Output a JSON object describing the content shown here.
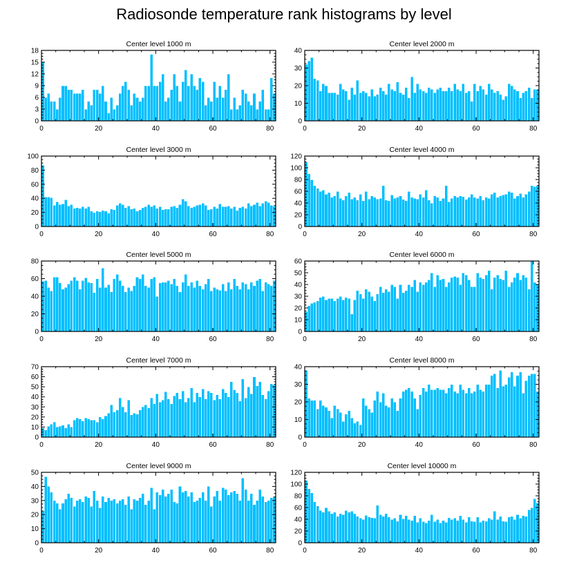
{
  "chart_data": {
    "type": "bar",
    "title": "Radiosonde temperature rank histograms by level",
    "bar_color": "#00bfff",
    "bar_edge_color": "#ffffff",
    "xlim": [
      0,
      82
    ],
    "x_ticks": [
      0,
      20,
      40,
      60,
      80
    ],
    "panels": [
      {
        "title": "Center level 1000 m",
        "ylim": [
          0,
          18
        ],
        "y_ticks": [
          0,
          3,
          6,
          9,
          12,
          15,
          18
        ],
        "values": [
          15,
          6,
          7,
          5,
          5,
          3,
          6,
          9,
          9,
          8,
          8,
          7,
          7,
          7,
          8,
          3,
          5,
          4,
          8,
          8,
          7,
          9,
          5,
          2,
          6,
          3,
          4,
          7,
          9,
          10,
          8,
          4,
          7,
          6,
          5,
          6,
          9,
          9,
          17,
          9,
          9,
          10,
          12,
          5,
          6,
          8,
          12,
          9,
          5,
          10,
          13,
          9,
          12,
          9,
          8,
          11,
          10,
          4,
          6,
          5,
          10,
          6,
          9,
          6,
          8,
          12,
          3,
          6,
          3,
          4,
          8,
          7,
          5,
          4,
          7,
          3,
          5,
          8,
          3,
          3,
          11,
          7
        ]
      },
      {
        "title": "Center level 2000 m",
        "ylim": [
          0,
          40
        ],
        "y_ticks": [
          0,
          10,
          20,
          30,
          40
        ],
        "values": [
          32,
          34,
          36,
          24,
          23,
          17,
          21,
          20,
          16,
          16,
          16,
          15,
          21,
          18,
          17,
          12,
          19,
          15,
          23,
          16,
          17,
          16,
          14,
          18,
          14,
          15,
          19,
          17,
          15,
          21,
          18,
          17,
          22,
          16,
          15,
          19,
          13,
          25,
          16,
          21,
          18,
          17,
          16,
          19,
          18,
          16,
          18,
          19,
          17,
          17,
          19,
          17,
          21,
          18,
          17,
          21,
          16,
          17,
          11,
          21,
          17,
          20,
          18,
          15,
          21,
          18,
          16,
          17,
          15,
          12,
          14,
          21,
          20,
          18,
          17,
          13,
          16,
          17,
          19,
          13,
          18,
          18
        ]
      },
      {
        "title": "Center level 3000 m",
        "ylim": [
          0,
          100
        ],
        "y_ticks": [
          0,
          20,
          40,
          60,
          80,
          100
        ],
        "values": [
          87,
          42,
          42,
          41,
          30,
          35,
          31,
          32,
          38,
          29,
          31,
          26,
          27,
          26,
          28,
          26,
          28,
          22,
          20,
          22,
          21,
          23,
          22,
          19,
          25,
          24,
          30,
          33,
          31,
          27,
          29,
          25,
          26,
          22,
          24,
          27,
          28,
          31,
          28,
          30,
          26,
          28,
          24,
          25,
          25,
          28,
          29,
          27,
          31,
          39,
          36,
          29,
          27,
          28,
          30,
          31,
          33,
          30,
          24,
          25,
          28,
          26,
          32,
          28,
          28,
          29,
          26,
          28,
          23,
          27,
          28,
          26,
          33,
          29,
          31,
          34,
          29,
          33,
          36,
          34,
          30,
          29
        ]
      },
      {
        "title": "Center level 4000 m",
        "ylim": [
          0,
          120
        ],
        "y_ticks": [
          0,
          20,
          40,
          60,
          80,
          100,
          120
        ],
        "values": [
          110,
          90,
          80,
          70,
          65,
          60,
          62,
          55,
          58,
          50,
          52,
          60,
          48,
          45,
          52,
          58,
          47,
          50,
          45,
          55,
          44,
          60,
          47,
          52,
          50,
          47,
          48,
          70,
          45,
          44,
          54,
          48,
          50,
          52,
          46,
          44,
          60,
          50,
          48,
          47,
          55,
          50,
          62,
          45,
          40,
          52,
          50,
          44,
          48,
          70,
          42,
          48,
          52,
          50,
          52,
          51,
          46,
          50,
          55,
          50,
          48,
          52,
          45,
          50,
          48,
          55,
          58,
          50,
          52,
          54,
          55,
          60,
          58,
          48,
          52,
          56,
          50,
          55,
          60,
          70,
          68,
          70
        ]
      },
      {
        "title": "Center level 5000 m",
        "ylim": [
          0,
          80
        ],
        "y_ticks": [
          0,
          20,
          40,
          60,
          80
        ],
        "values": [
          57,
          58,
          50,
          46,
          62,
          62,
          55,
          48,
          50,
          54,
          58,
          62,
          58,
          48,
          58,
          61,
          56,
          55,
          44,
          60,
          50,
          72,
          50,
          53,
          45,
          60,
          65,
          58,
          52,
          45,
          50,
          46,
          52,
          62,
          60,
          65,
          52,
          50,
          60,
          62,
          40,
          55,
          56,
          56,
          58,
          54,
          60,
          52,
          45,
          56,
          65,
          52,
          56,
          50,
          58,
          52,
          48,
          54,
          60,
          46,
          50,
          48,
          47,
          54,
          46,
          56,
          48,
          60,
          52,
          48,
          56,
          54,
          48,
          56,
          52,
          58,
          60,
          46,
          56,
          54,
          52,
          58
        ]
      },
      {
        "title": "Center level 6000 m",
        "ylim": [
          0,
          60
        ],
        "y_ticks": [
          0,
          10,
          20,
          30,
          40,
          50,
          60
        ],
        "values": [
          17,
          22,
          24,
          25,
          26,
          29,
          30,
          27,
          28,
          28,
          26,
          28,
          30,
          27,
          29,
          28,
          15,
          27,
          35,
          32,
          28,
          36,
          34,
          30,
          26,
          32,
          38,
          33,
          36,
          34,
          40,
          38,
          28,
          40,
          33,
          35,
          40,
          38,
          44,
          34,
          42,
          40,
          42,
          44,
          50,
          38,
          48,
          44,
          45,
          38,
          42,
          46,
          47,
          46,
          40,
          50,
          48,
          44,
          38,
          38,
          50,
          46,
          45,
          48,
          52,
          36,
          46,
          48,
          45,
          44,
          52,
          38,
          42,
          46,
          50,
          44,
          48,
          46,
          36,
          60,
          42,
          40
        ]
      },
      {
        "title": "Center level 7000 m",
        "ylim": [
          0,
          70
        ],
        "y_ticks": [
          0,
          10,
          20,
          30,
          40,
          50,
          60,
          70
        ],
        "values": [
          9,
          7,
          11,
          13,
          15,
          10,
          11,
          12,
          9,
          13,
          10,
          17,
          19,
          18,
          16,
          19,
          18,
          17,
          17,
          15,
          20,
          18,
          21,
          24,
          32,
          25,
          27,
          39,
          30,
          25,
          37,
          22,
          24,
          23,
          27,
          30,
          32,
          29,
          39,
          33,
          43,
          35,
          37,
          45,
          38,
          33,
          41,
          44,
          38,
          46,
          35,
          39,
          49,
          35,
          44,
          40,
          48,
          38,
          46,
          44,
          37,
          42,
          38,
          48,
          44,
          40,
          55,
          47,
          44,
          36,
          58,
          39,
          50,
          43,
          60,
          51,
          55,
          42,
          38,
          46,
          53,
          52
        ]
      },
      {
        "title": "Center level 8000 m",
        "ylim": [
          0,
          40
        ],
        "y_ticks": [
          0,
          10,
          20,
          30,
          40
        ],
        "values": [
          38,
          22,
          21,
          21,
          16,
          21,
          18,
          17,
          15,
          11,
          18,
          16,
          14,
          9,
          13,
          15,
          11,
          8,
          9,
          7,
          22,
          18,
          16,
          14,
          21,
          26,
          20,
          25,
          18,
          17,
          22,
          20,
          15,
          22,
          26,
          27,
          28,
          26,
          22,
          16,
          24,
          28,
          26,
          30,
          27,
          27,
          28,
          27,
          27,
          25,
          28,
          30,
          26,
          25,
          30,
          27,
          25,
          28,
          25,
          26,
          30,
          27,
          26,
          30,
          30,
          35,
          36,
          28,
          38,
          29,
          30,
          34,
          37,
          29,
          35,
          37,
          25,
          32,
          35,
          36,
          36,
          26
        ]
      },
      {
        "title": "Center level 9000 m",
        "ylim": [
          0,
          50
        ],
        "y_ticks": [
          0,
          10,
          20,
          30,
          40,
          50
        ],
        "values": [
          23,
          47,
          40,
          36,
          30,
          28,
          24,
          28,
          31,
          35,
          32,
          26,
          30,
          31,
          29,
          33,
          32,
          26,
          37,
          30,
          25,
          33,
          29,
          32,
          30,
          31,
          28,
          30,
          31,
          27,
          33,
          24,
          31,
          30,
          32,
          35,
          27,
          30,
          39,
          24,
          36,
          34,
          38,
          33,
          35,
          38,
          29,
          28,
          40,
          36,
          37,
          33,
          36,
          29,
          30,
          32,
          36,
          30,
          40,
          26,
          33,
          37,
          30,
          39,
          38,
          34,
          36,
          37,
          35,
          30,
          46,
          38,
          30,
          35,
          27,
          30,
          38,
          33,
          29,
          30,
          32,
          33
        ]
      },
      {
        "title": "Center level 10000 m",
        "ylim": [
          0,
          120
        ],
        "y_ticks": [
          0,
          20,
          40,
          60,
          80,
          100,
          120
        ],
        "values": [
          106,
          92,
          85,
          70,
          63,
          55,
          52,
          60,
          54,
          50,
          52,
          45,
          50,
          48,
          55,
          52,
          54,
          50,
          45,
          42,
          40,
          47,
          44,
          43,
          42,
          64,
          48,
          45,
          50,
          44,
          40,
          42,
          37,
          48,
          41,
          46,
          40,
          38,
          46,
          35,
          42,
          36,
          34,
          38,
          48,
          36,
          40,
          34,
          38,
          35,
          43,
          40,
          42,
          38,
          46,
          40,
          35,
          44,
          37,
          36,
          44,
          35,
          38,
          37,
          42,
          40,
          54,
          40,
          45,
          37,
          36,
          44,
          45,
          40,
          48,
          42,
          46,
          45,
          56,
          60,
          75,
          68
        ]
      }
    ]
  }
}
